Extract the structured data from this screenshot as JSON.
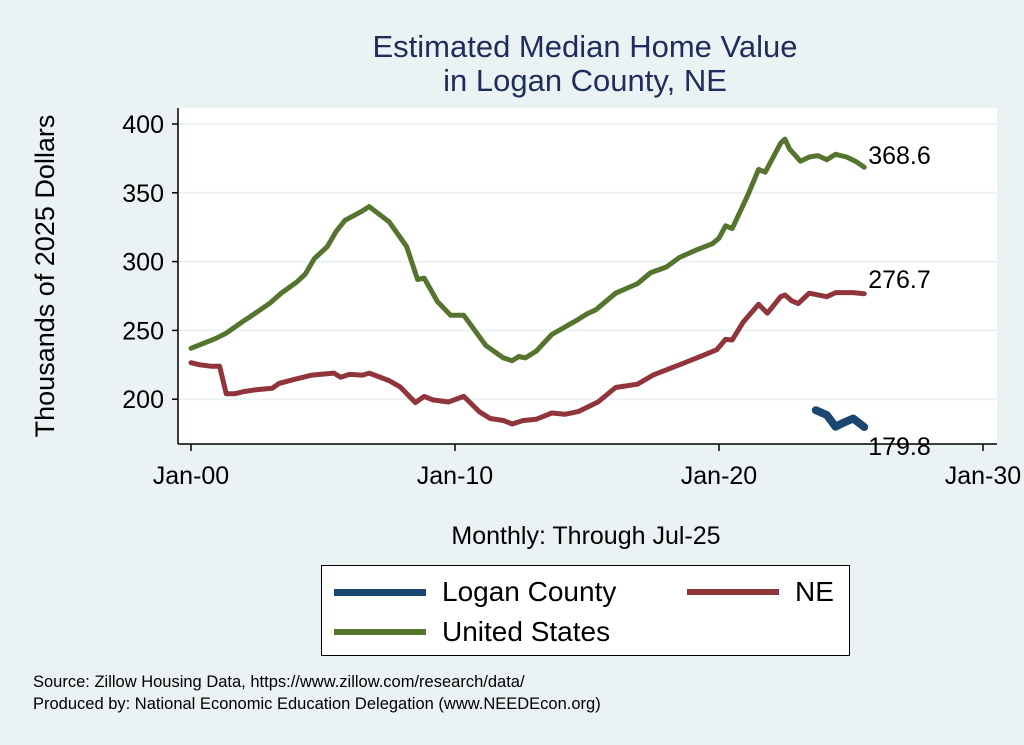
{
  "chart_data": {
    "type": "line",
    "title": [
      "Estimated Median Home Value",
      "in Logan County, NE"
    ],
    "ylabel": "Thousands of 2025 Dollars",
    "xlabel": "Monthly: Through Jul-25",
    "ylim": [
      180,
      410
    ],
    "xlim": [
      "1999-07",
      "2030-07"
    ],
    "yticks": [
      200,
      250,
      300,
      350,
      400
    ],
    "xticks": [
      {
        "date": "2000-01",
        "label": "Jan-00"
      },
      {
        "date": "2010-01",
        "label": "Jan-10"
      },
      {
        "date": "2020-01",
        "label": "Jan-20"
      },
      {
        "date": "2030-01",
        "label": "Jan-30"
      }
    ],
    "grid": "horizontal",
    "legend_placement": "bottom",
    "series": [
      {
        "name": "Logan County",
        "color": "#1a476f",
        "end_label": "179.8",
        "points": [
          [
            "2023-09",
            192
          ],
          [
            "2024-02",
            188.5
          ],
          [
            "2024-06",
            180
          ],
          [
            "2024-09",
            182.5
          ],
          [
            "2025-02",
            186
          ],
          [
            "2025-07",
            179.8
          ]
        ]
      },
      {
        "name": "NE",
        "color": "#90353b",
        "end_label": "276.7",
        "points": [
          [
            "2000-01",
            226.5
          ],
          [
            "2000-05",
            225
          ],
          [
            "2000-10",
            224
          ],
          [
            "2001-02",
            224
          ],
          [
            "2001-05",
            204
          ],
          [
            "2001-09",
            204
          ],
          [
            "2002-01",
            205.5
          ],
          [
            "2002-07",
            207
          ],
          [
            "2003-02",
            208
          ],
          [
            "2003-05",
            211.5
          ],
          [
            "2003-11",
            214
          ],
          [
            "2004-08",
            217.5
          ],
          [
            "2005-06",
            219
          ],
          [
            "2005-09",
            216
          ],
          [
            "2006-01",
            218
          ],
          [
            "2006-07",
            217.5
          ],
          [
            "2006-10",
            219
          ],
          [
            "2007-07",
            213.5
          ],
          [
            "2007-12",
            209
          ],
          [
            "2008-07",
            197.5
          ],
          [
            "2008-11",
            202
          ],
          [
            "2009-03",
            199.5
          ],
          [
            "2009-10",
            198
          ],
          [
            "2010-05",
            202
          ],
          [
            "2010-12",
            191
          ],
          [
            "2011-05",
            186
          ],
          [
            "2011-11",
            184.5
          ],
          [
            "2012-03",
            182
          ],
          [
            "2012-08",
            184.5
          ],
          [
            "2013-02",
            185.5
          ],
          [
            "2013-09",
            190
          ],
          [
            "2014-03",
            189
          ],
          [
            "2014-09",
            191
          ],
          [
            "2015-06",
            198
          ],
          [
            "2016-02",
            208.5
          ],
          [
            "2016-12",
            211
          ],
          [
            "2017-07",
            217.5
          ],
          [
            "2018-07",
            225
          ],
          [
            "2019-06",
            232
          ],
          [
            "2019-12",
            236
          ],
          [
            "2020-04",
            243.5
          ],
          [
            "2020-07",
            243
          ],
          [
            "2020-12",
            256
          ],
          [
            "2021-07",
            269
          ],
          [
            "2021-11",
            262.5
          ],
          [
            "2022-05",
            274.5
          ],
          [
            "2022-07",
            275.7
          ],
          [
            "2022-10",
            271.5
          ],
          [
            "2023-01",
            269.5
          ],
          [
            "2023-06",
            277
          ],
          [
            "2024-02",
            274.5
          ],
          [
            "2024-06",
            277.5
          ],
          [
            "2025-02",
            277.5
          ],
          [
            "2025-07",
            276.7
          ]
        ]
      },
      {
        "name": "United States",
        "color": "#55752f",
        "end_label": "368.6",
        "points": [
          [
            "2000-01",
            237
          ],
          [
            "2000-12",
            244
          ],
          [
            "2001-05",
            248
          ],
          [
            "2002-01",
            257
          ],
          [
            "2002-04",
            260
          ],
          [
            "2003-01",
            270
          ],
          [
            "2003-06",
            277
          ],
          [
            "2004-01",
            285
          ],
          [
            "2004-05",
            291
          ],
          [
            "2004-09",
            302
          ],
          [
            "2005-03",
            311
          ],
          [
            "2005-07",
            322
          ],
          [
            "2005-11",
            330
          ],
          [
            "2006-06",
            336
          ],
          [
            "2006-10",
            340
          ],
          [
            "2007-07",
            329
          ],
          [
            "2008-03",
            311
          ],
          [
            "2008-08",
            287
          ],
          [
            "2008-11",
            288
          ],
          [
            "2009-05",
            271
          ],
          [
            "2009-11",
            261
          ],
          [
            "2010-05",
            261
          ],
          [
            "2011-03",
            239
          ],
          [
            "2011-11",
            230
          ],
          [
            "2012-03",
            228
          ],
          [
            "2012-06",
            231
          ],
          [
            "2012-09",
            230
          ],
          [
            "2013-02",
            235
          ],
          [
            "2013-09",
            247
          ],
          [
            "2014-09",
            258
          ],
          [
            "2015-01",
            262
          ],
          [
            "2015-05",
            265
          ],
          [
            "2016-02",
            277
          ],
          [
            "2016-12",
            284
          ],
          [
            "2017-06",
            292
          ],
          [
            "2018-01",
            296
          ],
          [
            "2018-07",
            303
          ],
          [
            "2019-02",
            308
          ],
          [
            "2019-10",
            313
          ],
          [
            "2020-01",
            317
          ],
          [
            "2020-04",
            326
          ],
          [
            "2020-07",
            324
          ],
          [
            "2021-02",
            348
          ],
          [
            "2021-07",
            367
          ],
          [
            "2021-10",
            365
          ],
          [
            "2022-05",
            386
          ],
          [
            "2022-07",
            389
          ],
          [
            "2022-09",
            382
          ],
          [
            "2023-02",
            373
          ],
          [
            "2023-06",
            376
          ],
          [
            "2023-10",
            377
          ],
          [
            "2024-02",
            374
          ],
          [
            "2024-06",
            378
          ],
          [
            "2024-11",
            376
          ],
          [
            "2025-03",
            373
          ],
          [
            "2025-07",
            368.6
          ]
        ]
      }
    ]
  },
  "footer": {
    "source": "Source: Zillow Housing Data, https://www.zillow.com/research/data/",
    "produced_by": "Produced by: National Economic Education Delegation (www.NEEDEcon.org)"
  }
}
